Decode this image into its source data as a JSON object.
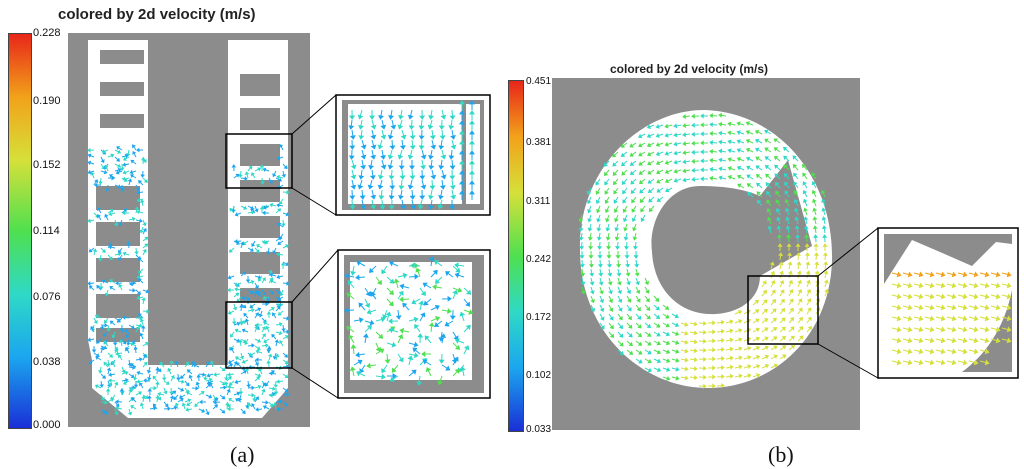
{
  "panel_a": {
    "title": "colored by 2d velocity (m/s)",
    "colorbar_ticks": [
      "0.228",
      "0.190",
      "0.152",
      "0.114",
      "0.076",
      "0.038",
      "0.000"
    ],
    "caption": "(a)"
  },
  "panel_b": {
    "title": "colored by 2d velocity (m/s)",
    "colorbar_ticks": [
      "0.451",
      "0.381",
      "0.311",
      "0.242",
      "0.172",
      "0.102",
      "0.033"
    ],
    "caption": "(b)"
  },
  "colors": {
    "wall_gray": "#8c8c8c",
    "colormap": [
      "#1a2fd6",
      "#1ba6ef",
      "#2fd9c6",
      "#4fe04f",
      "#d6e03a",
      "#f2a21a",
      "#e8261a"
    ]
  }
}
